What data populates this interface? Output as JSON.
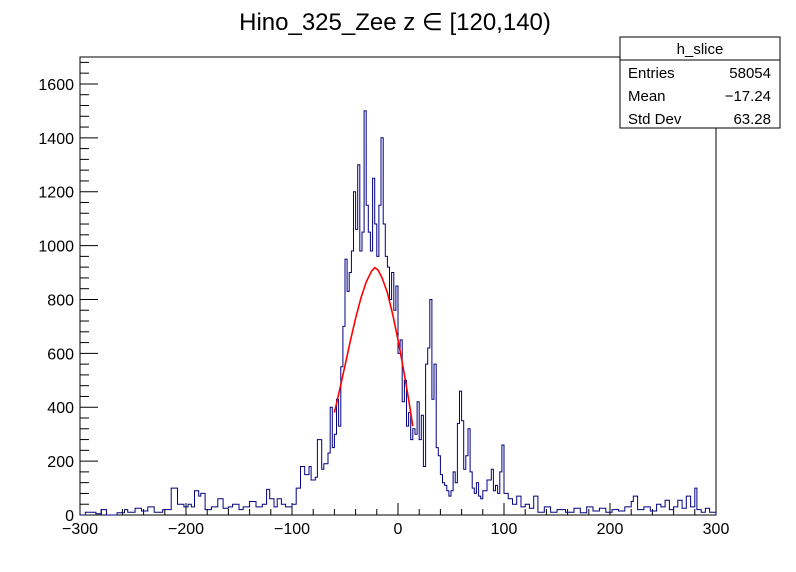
{
  "chart_data": {
    "type": "histogram",
    "title": "Hino_325_Zee z  ∈ [120,140)",
    "xlabel": "",
    "ylabel": "",
    "xlim": [
      -300,
      300
    ],
    "ylim": [
      0,
      1700
    ],
    "x_ticks": [
      "−300",
      "−200",
      "−100",
      "0",
      "100",
      "200",
      "300"
    ],
    "x_tick_values": [
      -300,
      -200,
      -100,
      0,
      100,
      200,
      300
    ],
    "y_ticks": [
      "0",
      "200",
      "400",
      "600",
      "800",
      "1000",
      "1200",
      "1400",
      "1600"
    ],
    "y_tick_values": [
      0,
      200,
      400,
      600,
      800,
      1000,
      1200,
      1400,
      1600
    ],
    "grid": false,
    "stats_box": {
      "name": "h_slice",
      "rows": [
        {
          "label": "Entries",
          "value": "58054"
        },
        {
          "label": "Mean",
          "value": "−17.24"
        },
        {
          "label": "Std Dev",
          "value": "63.28"
        }
      ]
    },
    "histogram_color": "#000080",
    "fit_color": "#ff0000",
    "histogram_points": [
      [
        -300,
        0
      ],
      [
        -295,
        10
      ],
      [
        -285,
        5
      ],
      [
        -280,
        20
      ],
      [
        -275,
        0
      ],
      [
        -265,
        8
      ],
      [
        -258,
        20
      ],
      [
        -255,
        10
      ],
      [
        -248,
        25
      ],
      [
        -242,
        15
      ],
      [
        -236,
        30
      ],
      [
        -230,
        10
      ],
      [
        -222,
        20
      ],
      [
        -214,
        100
      ],
      [
        -208,
        40
      ],
      [
        -202,
        30
      ],
      [
        -198,
        40
      ],
      [
        -195,
        30
      ],
      [
        -192,
        90
      ],
      [
        -188,
        70
      ],
      [
        -186,
        80
      ],
      [
        -182,
        20
      ],
      [
        -176,
        30
      ],
      [
        -170,
        60
      ],
      [
        -165,
        25
      ],
      [
        -160,
        30
      ],
      [
        -156,
        40
      ],
      [
        -150,
        20
      ],
      [
        -146,
        30
      ],
      [
        -140,
        50
      ],
      [
        -134,
        30
      ],
      [
        -128,
        40
      ],
      [
        -124,
        95
      ],
      [
        -121,
        60
      ],
      [
        -117,
        30
      ],
      [
        -114,
        60
      ],
      [
        -110,
        40
      ],
      [
        -106,
        30
      ],
      [
        -100,
        40
      ],
      [
        -96,
        100
      ],
      [
        -92,
        180
      ],
      [
        -88,
        150
      ],
      [
        -84,
        180
      ],
      [
        -82,
        130
      ],
      [
        -78,
        140
      ],
      [
        -76,
        280
      ],
      [
        -72,
        170
      ],
      [
        -70,
        190
      ],
      [
        -66,
        230
      ],
      [
        -64,
        400
      ],
      [
        -62,
        250
      ],
      [
        -60,
        300
      ],
      [
        -58,
        430
      ],
      [
        -56,
        330
      ],
      [
        -54,
        550
      ],
      [
        -52,
        700
      ],
      [
        -50,
        950
      ],
      [
        -48,
        830
      ],
      [
        -46,
        900
      ],
      [
        -44,
        980
      ],
      [
        -42,
        1200
      ],
      [
        -40,
        1060
      ],
      [
        -38,
        1300
      ],
      [
        -36,
        980
      ],
      [
        -34,
        1050
      ],
      [
        -32,
        1500
      ],
      [
        -30,
        1150
      ],
      [
        -28,
        1050
      ],
      [
        -26,
        980
      ],
      [
        -24,
        1250
      ],
      [
        -22,
        1080
      ],
      [
        -20,
        960
      ],
      [
        -18,
        1150
      ],
      [
        -16,
        1400
      ],
      [
        -14,
        1080
      ],
      [
        -12,
        960
      ],
      [
        -10,
        920
      ],
      [
        -8,
        800
      ],
      [
        -6,
        900
      ],
      [
        -4,
        760
      ],
      [
        -2,
        850
      ],
      [
        0,
        600
      ],
      [
        2,
        650
      ],
      [
        4,
        420
      ],
      [
        6,
        500
      ],
      [
        8,
        330
      ],
      [
        10,
        380
      ],
      [
        12,
        280
      ],
      [
        14,
        320
      ],
      [
        16,
        300
      ],
      [
        18,
        420
      ],
      [
        20,
        280
      ],
      [
        22,
        370
      ],
      [
        24,
        180
      ],
      [
        26,
        560
      ],
      [
        28,
        620
      ],
      [
        30,
        800
      ],
      [
        32,
        430
      ],
      [
        34,
        560
      ],
      [
        36,
        250
      ],
      [
        38,
        220
      ],
      [
        40,
        150
      ],
      [
        42,
        120
      ],
      [
        44,
        110
      ],
      [
        46,
        90
      ],
      [
        48,
        70
      ],
      [
        50,
        90
      ],
      [
        52,
        160
      ],
      [
        54,
        120
      ],
      [
        56,
        340
      ],
      [
        58,
        460
      ],
      [
        60,
        350
      ],
      [
        62,
        170
      ],
      [
        64,
        220
      ],
      [
        66,
        320
      ],
      [
        68,
        160
      ],
      [
        70,
        100
      ],
      [
        72,
        80
      ],
      [
        74,
        120
      ],
      [
        76,
        70
      ],
      [
        78,
        60
      ],
      [
        80,
        90
      ],
      [
        84,
        130
      ],
      [
        88,
        170
      ],
      [
        90,
        90
      ],
      [
        92,
        110
      ],
      [
        94,
        80
      ],
      [
        96,
        160
      ],
      [
        98,
        260
      ],
      [
        100,
        80
      ],
      [
        104,
        60
      ],
      [
        108,
        40
      ],
      [
        112,
        70
      ],
      [
        116,
        30
      ],
      [
        120,
        40
      ],
      [
        124,
        25
      ],
      [
        128,
        70
      ],
      [
        132,
        10
      ],
      [
        138,
        30
      ],
      [
        144,
        10
      ],
      [
        150,
        20
      ],
      [
        158,
        10
      ],
      [
        166,
        25
      ],
      [
        172,
        8
      ],
      [
        178,
        30
      ],
      [
        184,
        15
      ],
      [
        190,
        25
      ],
      [
        196,
        10
      ],
      [
        202,
        20
      ],
      [
        208,
        15
      ],
      [
        214,
        30
      ],
      [
        220,
        50
      ],
      [
        222,
        70
      ],
      [
        226,
        20
      ],
      [
        232,
        30
      ],
      [
        238,
        15
      ],
      [
        244,
        40
      ],
      [
        248,
        30
      ],
      [
        252,
        55
      ],
      [
        256,
        20
      ],
      [
        260,
        30
      ],
      [
        264,
        55
      ],
      [
        268,
        25
      ],
      [
        272,
        70
      ],
      [
        276,
        30
      ],
      [
        280,
        100
      ],
      [
        282,
        20
      ],
      [
        286,
        10
      ],
      [
        290,
        25
      ],
      [
        294,
        10
      ],
      [
        300,
        0
      ]
    ],
    "fit_points": [
      [
        -60,
        380
      ],
      [
        -55,
        465
      ],
      [
        -50,
        555
      ],
      [
        -45,
        645
      ],
      [
        -40,
        730
      ],
      [
        -35,
        805
      ],
      [
        -30,
        865
      ],
      [
        -25,
        905
      ],
      [
        -22,
        918
      ],
      [
        -19,
        910
      ],
      [
        -15,
        880
      ],
      [
        -10,
        825
      ],
      [
        -5,
        745
      ],
      [
        0,
        650
      ],
      [
        5,
        545
      ],
      [
        10,
        430
      ],
      [
        14,
        330
      ]
    ]
  }
}
